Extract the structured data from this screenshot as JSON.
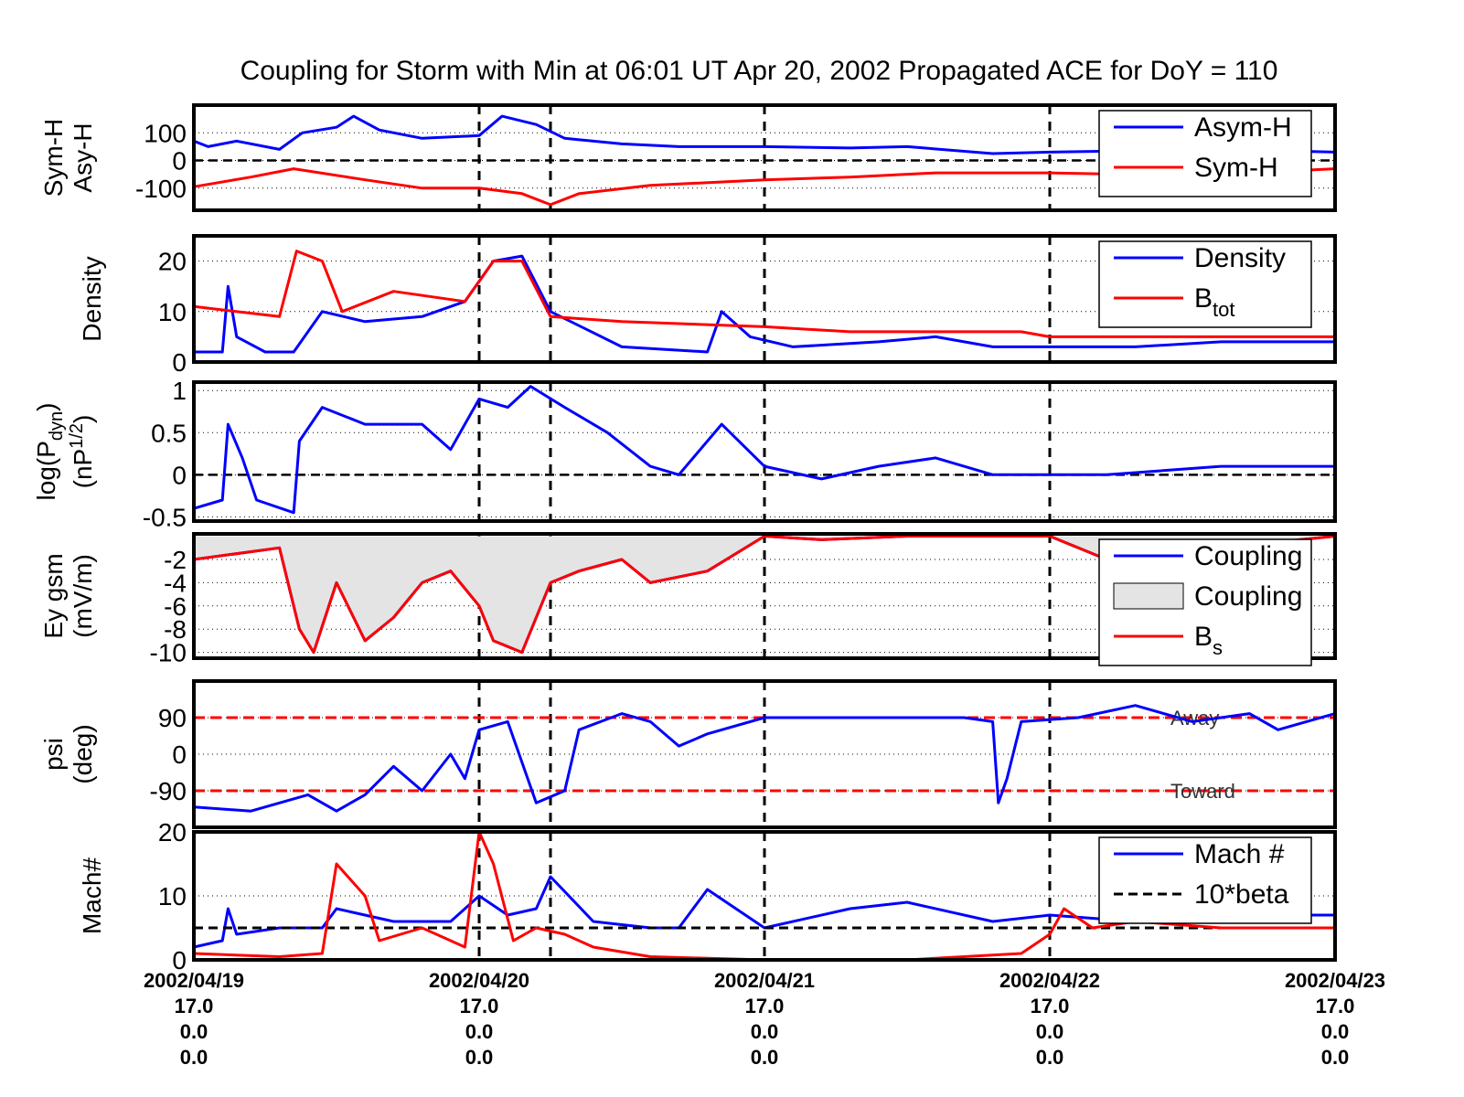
{
  "title": "Coupling for Storm with Min at 06:01 UT Apr 20, 2002  Propagated ACE for DoY = 110",
  "colors": {
    "blue": "#0000ff",
    "red": "#ff0000",
    "black": "#000000",
    "fill": "#e4e4e4"
  },
  "x_axis": {
    "dates": [
      "2002/04/19",
      "2002/04/20",
      "2002/04/21",
      "2002/04/22",
      "2002/04/23"
    ],
    "row2": [
      "17.0",
      "17.0",
      "17.0",
      "17.0",
      "17.0"
    ],
    "row3": [
      "0.0",
      "0.0",
      "0.0",
      "0.0",
      "0.0"
    ],
    "row4": [
      "0.0",
      "0.0",
      "0.0",
      "0.0",
      "0.0"
    ]
  },
  "chart_data": [
    {
      "type": "line",
      "ylabel": [
        "Sym-H",
        "Asy-H"
      ],
      "ylim": [
        -180,
        200
      ],
      "yticks": [
        -100,
        0,
        100
      ],
      "ytick_labels": [
        "-100",
        "0",
        "100"
      ],
      "grid": true,
      "legend_position": "top-right",
      "series": [
        {
          "name": "Asym-H",
          "color": "blue",
          "points": [
            [
              0,
              70
            ],
            [
              0.05,
              50
            ],
            [
              0.15,
              70
            ],
            [
              0.3,
              40
            ],
            [
              0.38,
              100
            ],
            [
              0.5,
              120
            ],
            [
              0.56,
              160
            ],
            [
              0.65,
              110
            ],
            [
              0.8,
              80
            ],
            [
              1.0,
              90
            ],
            [
              1.08,
              160
            ],
            [
              1.2,
              130
            ],
            [
              1.3,
              80
            ],
            [
              1.5,
              60
            ],
            [
              1.7,
              50
            ],
            [
              2.0,
              50
            ],
            [
              2.3,
              45
            ],
            [
              2.5,
              50
            ],
            [
              2.8,
              25
            ],
            [
              3.0,
              30
            ],
            [
              3.3,
              35
            ],
            [
              3.6,
              40
            ],
            [
              4.0,
              30
            ]
          ]
        },
        {
          "name": "Sym-H",
          "color": "red",
          "points": [
            [
              0,
              -95
            ],
            [
              0.2,
              -60
            ],
            [
              0.35,
              -30
            ],
            [
              0.6,
              -70
            ],
            [
              0.8,
              -100
            ],
            [
              1.0,
              -100
            ],
            [
              1.15,
              -120
            ],
            [
              1.25,
              -160
            ],
            [
              1.35,
              -120
            ],
            [
              1.6,
              -90
            ],
            [
              2.0,
              -70
            ],
            [
              2.3,
              -60
            ],
            [
              2.6,
              -45
            ],
            [
              3.0,
              -45
            ],
            [
              3.5,
              -55
            ],
            [
              4.0,
              -30
            ]
          ]
        }
      ]
    },
    {
      "type": "line",
      "ylabel": [
        "Density"
      ],
      "ylim": [
        0,
        25
      ],
      "yticks": [
        0,
        10,
        20
      ],
      "ytick_labels": [
        "0",
        "10",
        "20"
      ],
      "grid": true,
      "legend_position": "top-right",
      "series": [
        {
          "name": "Density",
          "color": "blue",
          "points": [
            [
              0,
              2
            ],
            [
              0.1,
              2
            ],
            [
              0.12,
              15
            ],
            [
              0.15,
              5
            ],
            [
              0.25,
              2
            ],
            [
              0.35,
              2
            ],
            [
              0.45,
              10
            ],
            [
              0.6,
              8
            ],
            [
              0.8,
              9
            ],
            [
              0.95,
              12
            ],
            [
              1.05,
              20
            ],
            [
              1.15,
              21
            ],
            [
              1.25,
              10
            ],
            [
              1.5,
              3
            ],
            [
              1.8,
              2
            ],
            [
              1.85,
              10
            ],
            [
              1.95,
              5
            ],
            [
              2.1,
              3
            ],
            [
              2.4,
              4
            ],
            [
              2.6,
              5
            ],
            [
              2.8,
              3
            ],
            [
              3.0,
              3
            ],
            [
              3.3,
              3
            ],
            [
              3.6,
              4
            ],
            [
              4.0,
              4
            ]
          ]
        },
        {
          "name": "B",
          "name_sub": "tot",
          "color": "red",
          "points": [
            [
              0,
              11
            ],
            [
              0.3,
              9
            ],
            [
              0.36,
              22
            ],
            [
              0.45,
              20
            ],
            [
              0.52,
              10
            ],
            [
              0.7,
              14
            ],
            [
              0.95,
              12
            ],
            [
              1.05,
              20
            ],
            [
              1.15,
              20
            ],
            [
              1.25,
              9
            ],
            [
              1.5,
              8
            ],
            [
              2.0,
              7
            ],
            [
              2.3,
              6
            ],
            [
              2.6,
              6
            ],
            [
              2.9,
              6
            ],
            [
              3.0,
              5
            ],
            [
              3.3,
              5
            ],
            [
              4.0,
              5
            ]
          ]
        }
      ]
    },
    {
      "type": "line",
      "ylabel": [
        "log(P",
        "dyn",
        ")",
        "(nP",
        "1/2",
        ")"
      ],
      "ylim": [
        -0.55,
        1.1
      ],
      "yticks": [
        -0.5,
        0,
        0.5,
        1
      ],
      "ytick_labels": [
        "-0.5",
        "0",
        "0.5",
        "1"
      ],
      "grid": true,
      "series": [
        {
          "name": "",
          "color": "blue",
          "points": [
            [
              0,
              -0.4
            ],
            [
              0.1,
              -0.3
            ],
            [
              0.12,
              0.6
            ],
            [
              0.17,
              0.2
            ],
            [
              0.22,
              -0.3
            ],
            [
              0.35,
              -0.45
            ],
            [
              0.37,
              0.4
            ],
            [
              0.45,
              0.8
            ],
            [
              0.6,
              0.6
            ],
            [
              0.8,
              0.6
            ],
            [
              0.9,
              0.3
            ],
            [
              1.0,
              0.9
            ],
            [
              1.1,
              0.8
            ],
            [
              1.18,
              1.05
            ],
            [
              1.3,
              0.8
            ],
            [
              1.45,
              0.5
            ],
            [
              1.6,
              0.1
            ],
            [
              1.7,
              0.0
            ],
            [
              1.85,
              0.6
            ],
            [
              2.0,
              0.1
            ],
            [
              2.2,
              -0.05
            ],
            [
              2.4,
              0.1
            ],
            [
              2.6,
              0.2
            ],
            [
              2.8,
              0.0
            ],
            [
              3.0,
              0.0
            ],
            [
              3.2,
              0.0
            ],
            [
              3.6,
              0.1
            ],
            [
              4.0,
              0.1
            ]
          ]
        }
      ]
    },
    {
      "type": "area",
      "ylabel": [
        "Ey gsm",
        "(mV/m)"
      ],
      "ylim": [
        -10.5,
        0.2
      ],
      "yticks": [
        -10,
        -8,
        -6,
        -4,
        -2
      ],
      "ytick_labels": [
        "-10",
        "-8",
        "-6",
        "-4",
        "-2"
      ],
      "grid": true,
      "legend_position": "top-right",
      "series": [
        {
          "name": "Coupling",
          "color": "blue",
          "fill": "fill",
          "points": [
            [
              0,
              -2
            ],
            [
              0.3,
              -1
            ],
            [
              0.37,
              -8
            ],
            [
              0.42,
              -10
            ],
            [
              0.5,
              -4
            ],
            [
              0.6,
              -9
            ],
            [
              0.7,
              -7
            ],
            [
              0.8,
              -4
            ],
            [
              0.9,
              -3
            ],
            [
              1.0,
              -6
            ],
            [
              1.05,
              -9
            ],
            [
              1.15,
              -10
            ],
            [
              1.25,
              -4
            ],
            [
              1.35,
              -3
            ],
            [
              1.5,
              -2
            ],
            [
              1.6,
              -4
            ],
            [
              1.8,
              -3
            ],
            [
              2.0,
              0
            ],
            [
              2.2,
              -0.3
            ],
            [
              2.5,
              0
            ],
            [
              3.0,
              0
            ],
            [
              3.2,
              -2
            ],
            [
              4.0,
              0
            ]
          ]
        },
        {
          "name": "B",
          "name_sub": "s",
          "color": "red",
          "points": [
            [
              0,
              -2
            ],
            [
              0.3,
              -1
            ],
            [
              0.37,
              -8
            ],
            [
              0.42,
              -10
            ],
            [
              0.5,
              -4
            ],
            [
              0.6,
              -9
            ],
            [
              0.7,
              -7
            ],
            [
              0.8,
              -4
            ],
            [
              0.9,
              -3
            ],
            [
              1.0,
              -6
            ],
            [
              1.05,
              -9
            ],
            [
              1.15,
              -10
            ],
            [
              1.25,
              -4
            ],
            [
              1.35,
              -3
            ],
            [
              1.5,
              -2
            ],
            [
              1.6,
              -4
            ],
            [
              1.8,
              -3
            ],
            [
              2.0,
              0
            ],
            [
              2.2,
              -0.3
            ],
            [
              2.5,
              0
            ],
            [
              3.0,
              0
            ],
            [
              3.2,
              -2
            ],
            [
              4.0,
              0
            ]
          ]
        }
      ],
      "fill_label": "Coupling"
    },
    {
      "type": "line",
      "ylabel": [
        "psi",
        "(deg)"
      ],
      "ylim": [
        -180,
        180
      ],
      "yticks": [
        -90,
        0,
        90
      ],
      "ytick_labels": [
        "-90",
        "0",
        "90"
      ],
      "grid": true,
      "reference_lines": [
        {
          "y": 90,
          "label": "Away"
        },
        {
          "y": -90,
          "label": "Toward"
        }
      ],
      "series": [
        {
          "name": "",
          "color": "blue",
          "points": [
            [
              0,
              -130
            ],
            [
              0.2,
              -140
            ],
            [
              0.4,
              -100
            ],
            [
              0.5,
              -140
            ],
            [
              0.6,
              -100
            ],
            [
              0.7,
              -30
            ],
            [
              0.8,
              -90
            ],
            [
              0.9,
              0
            ],
            [
              0.95,
              -60
            ],
            [
              1.0,
              60
            ],
            [
              1.1,
              80
            ],
            [
              1.2,
              -120
            ],
            [
              1.3,
              -90
            ],
            [
              1.35,
              60
            ],
            [
              1.5,
              100
            ],
            [
              1.6,
              80
            ],
            [
              1.7,
              20
            ],
            [
              1.8,
              50
            ],
            [
              2.0,
              90
            ],
            [
              2.3,
              90
            ],
            [
              2.7,
              90
            ],
            [
              2.8,
              80
            ],
            [
              2.82,
              -120
            ],
            [
              2.85,
              -60
            ],
            [
              2.9,
              80
            ],
            [
              3.1,
              90
            ],
            [
              3.3,
              120
            ],
            [
              3.5,
              80
            ],
            [
              3.7,
              100
            ],
            [
              3.8,
              60
            ],
            [
              4.0,
              100
            ]
          ]
        }
      ]
    },
    {
      "type": "line",
      "ylabel": [
        "Mach#"
      ],
      "ylim": [
        0,
        20
      ],
      "yticks": [
        0,
        10,
        20
      ],
      "ytick_labels": [
        "0",
        "10",
        "20"
      ],
      "grid": true,
      "legend_position": "top-right",
      "series": [
        {
          "name": "Mach #",
          "color": "blue",
          "points": [
            [
              0,
              2
            ],
            [
              0.1,
              3
            ],
            [
              0.12,
              8
            ],
            [
              0.15,
              4
            ],
            [
              0.3,
              5
            ],
            [
              0.45,
              5
            ],
            [
              0.5,
              8
            ],
            [
              0.7,
              6
            ],
            [
              0.9,
              6
            ],
            [
              1.0,
              10
            ],
            [
              1.1,
              7
            ],
            [
              1.2,
              8
            ],
            [
              1.25,
              13
            ],
            [
              1.4,
              6
            ],
            [
              1.6,
              5
            ],
            [
              1.7,
              5
            ],
            [
              1.8,
              11
            ],
            [
              2.0,
              5
            ],
            [
              2.3,
              8
            ],
            [
              2.5,
              9
            ],
            [
              2.8,
              6
            ],
            [
              3.0,
              7
            ],
            [
              3.3,
              6
            ],
            [
              3.6,
              7
            ],
            [
              4.0,
              7
            ]
          ]
        },
        {
          "name": "10*beta",
          "color": "black",
          "dashed": true,
          "points": [
            [
              0,
              5
            ],
            [
              4.0,
              5
            ]
          ]
        },
        {
          "name": "",
          "color": "red",
          "points": [
            [
              0,
              1
            ],
            [
              0.3,
              0.5
            ],
            [
              0.45,
              1
            ],
            [
              0.5,
              15
            ],
            [
              0.6,
              10
            ],
            [
              0.65,
              3
            ],
            [
              0.8,
              5
            ],
            [
              0.95,
              2
            ],
            [
              1.0,
              20
            ],
            [
              1.05,
              15
            ],
            [
              1.12,
              3
            ],
            [
              1.2,
              5
            ],
            [
              1.3,
              4
            ],
            [
              1.4,
              2
            ],
            [
              1.6,
              0.5
            ],
            [
              2.0,
              0
            ],
            [
              2.5,
              0
            ],
            [
              2.9,
              1
            ],
            [
              3.0,
              4
            ],
            [
              3.05,
              8
            ],
            [
              3.15,
              5
            ],
            [
              3.3,
              6
            ],
            [
              3.6,
              5
            ],
            [
              4.0,
              5
            ]
          ]
        }
      ]
    }
  ]
}
